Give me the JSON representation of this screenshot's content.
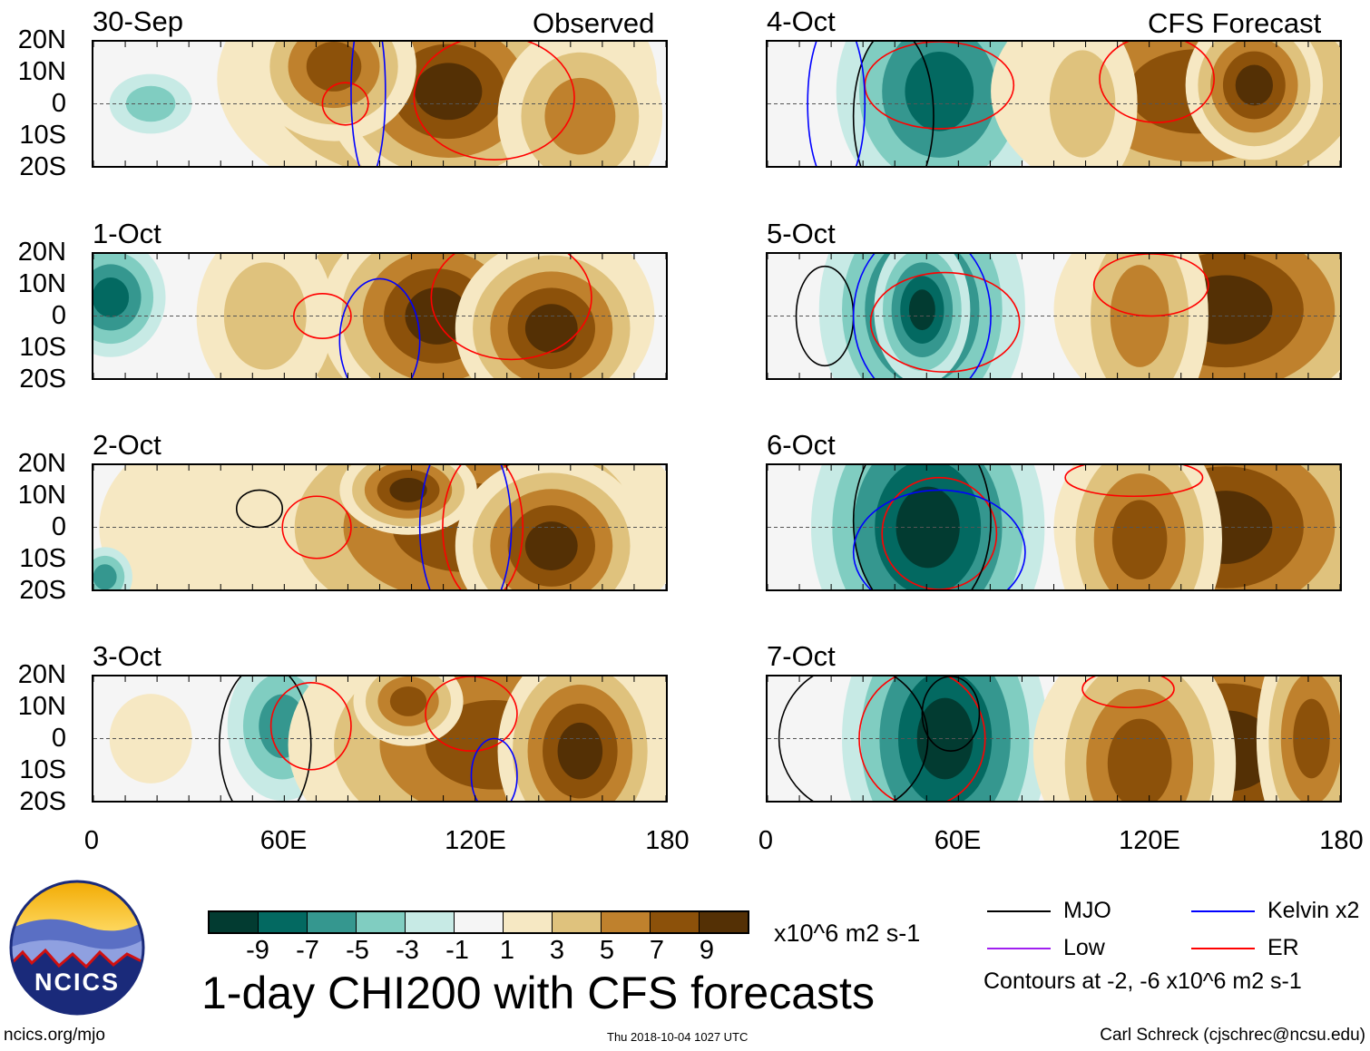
{
  "chart_data": {
    "type": "heatmap",
    "title": "1-day CHI200 with CFS forecasts",
    "units": "x10^6 m2 s-1",
    "colorbar": {
      "levels": [
        "-9",
        "-7",
        "-5",
        "-3",
        "-1",
        "1",
        "3",
        "5",
        "7",
        "9"
      ],
      "colors": [
        "#023b31",
        "#036961",
        "#35978f",
        "#80cdc1",
        "#c7eae5",
        "#f5f5f5",
        "#f6e8c3",
        "#dfc27d",
        "#bf812d",
        "#8c510a",
        "#543005"
      ]
    },
    "lat_labels": [
      "20N",
      "10N",
      "0",
      "10S",
      "20S"
    ],
    "lon_labels": [
      "0",
      "60E",
      "120E",
      "180"
    ],
    "xlim": [
      0,
      180
    ],
    "ylim": [
      -20,
      20
    ],
    "columns": {
      "left": "Observed",
      "right": "CFS Forecast"
    },
    "panels": [
      {
        "date": "30-Sep",
        "column": "left"
      },
      {
        "date": "1-Oct",
        "column": "left"
      },
      {
        "date": "2-Oct",
        "column": "left"
      },
      {
        "date": "3-Oct",
        "column": "left"
      },
      {
        "date": "4-Oct",
        "column": "right"
      },
      {
        "date": "5-Oct",
        "column": "right"
      },
      {
        "date": "6-Oct",
        "column": "right"
      },
      {
        "date": "7-Oct",
        "column": "right"
      }
    ],
    "legend": [
      {
        "label": "MJO",
        "color": "#000000"
      },
      {
        "label": "Kelvin x2",
        "color": "#0000ff"
      },
      {
        "label": "Low",
        "color": "#a020f0"
      },
      {
        "label": "ER",
        "color": "#ff0000"
      }
    ],
    "contour_note": "Contours at -2, -6 x10^6 m2 s-1"
  },
  "footer": {
    "logo_text": "NCICS",
    "url": "ncics.org/mjo",
    "timestamp": "Thu 2018-10-04 1027 UTC",
    "author": "Carl Schreck (cjschrec@ncsu.edu)"
  }
}
